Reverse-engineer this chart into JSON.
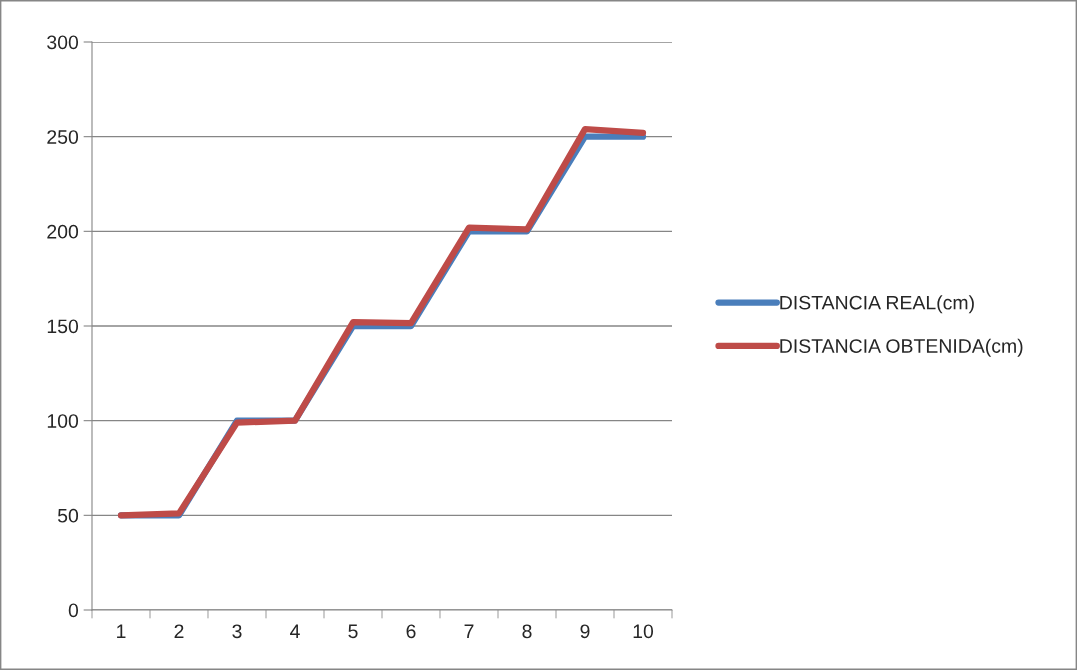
{
  "chart_data": {
    "type": "line",
    "categories": [
      "1",
      "2",
      "3",
      "4",
      "5",
      "6",
      "7",
      "8",
      "9",
      "10"
    ],
    "series": [
      {
        "name": "DISTANCIA REAL(cm)",
        "color": "#4a7ebb",
        "values": [
          50,
          50,
          100,
          100,
          150,
          150,
          200,
          200,
          250,
          250
        ]
      },
      {
        "name": "DISTANCIA OBTENIDA(cm)",
        "color": "#be4b48",
        "values": [
          50,
          51,
          99,
          100,
          152,
          151.5,
          202,
          201,
          254,
          252
        ]
      }
    ],
    "ylim": [
      0,
      300
    ],
    "yticks": [
      0,
      50,
      100,
      150,
      200,
      250,
      300
    ],
    "grid": "y",
    "legend": "right",
    "marker": "none",
    "line_style": "solid"
  }
}
